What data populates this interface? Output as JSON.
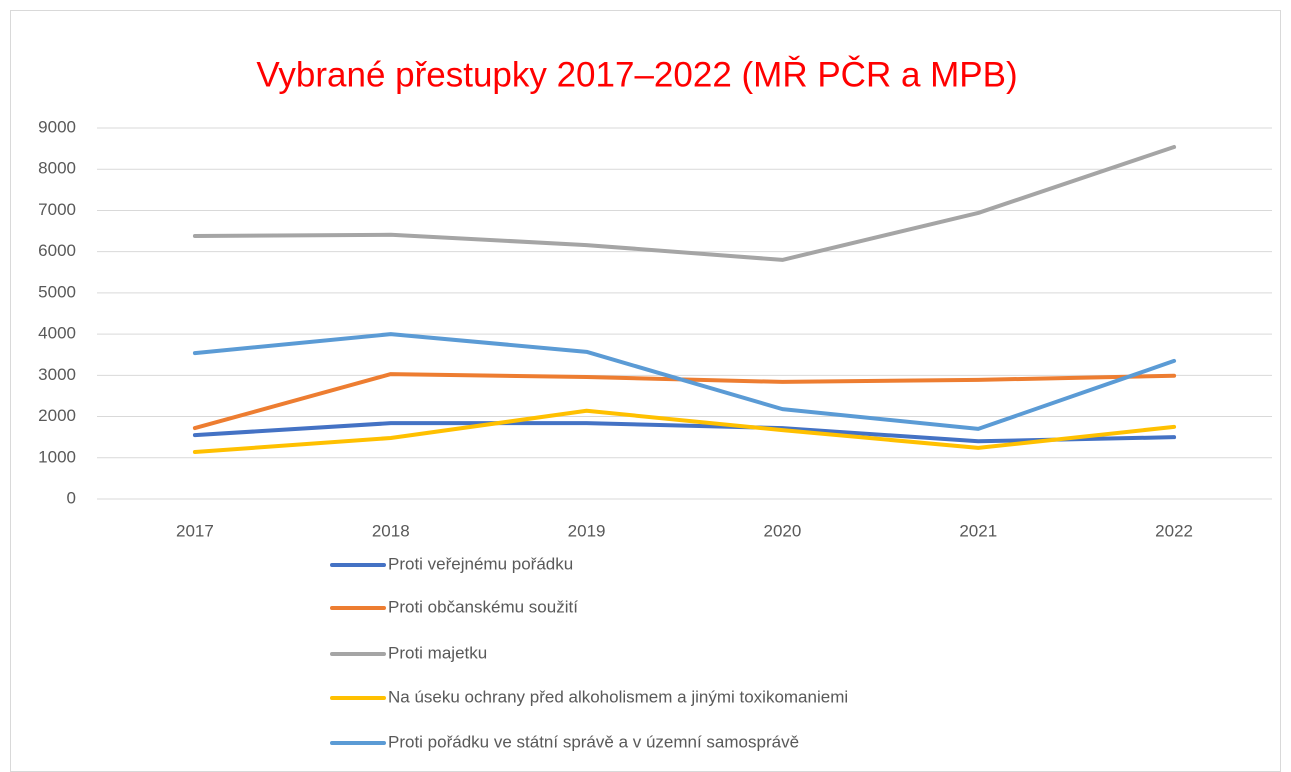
{
  "chart_data": {
    "type": "line",
    "title": "Vybrané přestupky 2017–2022 (MŘ PČR a MPB)",
    "title_color": "#ff0000",
    "categories": [
      "2017",
      "2018",
      "2019",
      "2020",
      "2021",
      "2022"
    ],
    "series": [
      {
        "name": "Proti veřejnému pořádku",
        "color": "#4472c4",
        "values": [
          1550,
          1840,
          1840,
          1720,
          1400,
          1500
        ]
      },
      {
        "name": "Proti občanskému soužití",
        "color": "#ed7d31",
        "values": [
          1720,
          3030,
          2960,
          2840,
          2890,
          2990
        ]
      },
      {
        "name": "Proti majetku",
        "color": "#a5a5a5",
        "values": [
          6380,
          6410,
          6160,
          5800,
          6940,
          8540
        ]
      },
      {
        "name": "Na úseku ochrany před alkoholismem a jinými toxikomaniemi",
        "color": "#ffc000",
        "values": [
          1140,
          1480,
          2140,
          1670,
          1240,
          1750
        ]
      },
      {
        "name": "Proti pořádku ve státní správě a  v územní samosprávě",
        "color": "#5b9bd5",
        "values": [
          3540,
          4000,
          3570,
          2180,
          1700,
          3350
        ]
      }
    ],
    "ylim": [
      0,
      9000
    ],
    "yticks": [
      0,
      1000,
      2000,
      3000,
      4000,
      5000,
      6000,
      7000,
      8000,
      9000
    ],
    "grid": true,
    "legend": "bottom"
  }
}
